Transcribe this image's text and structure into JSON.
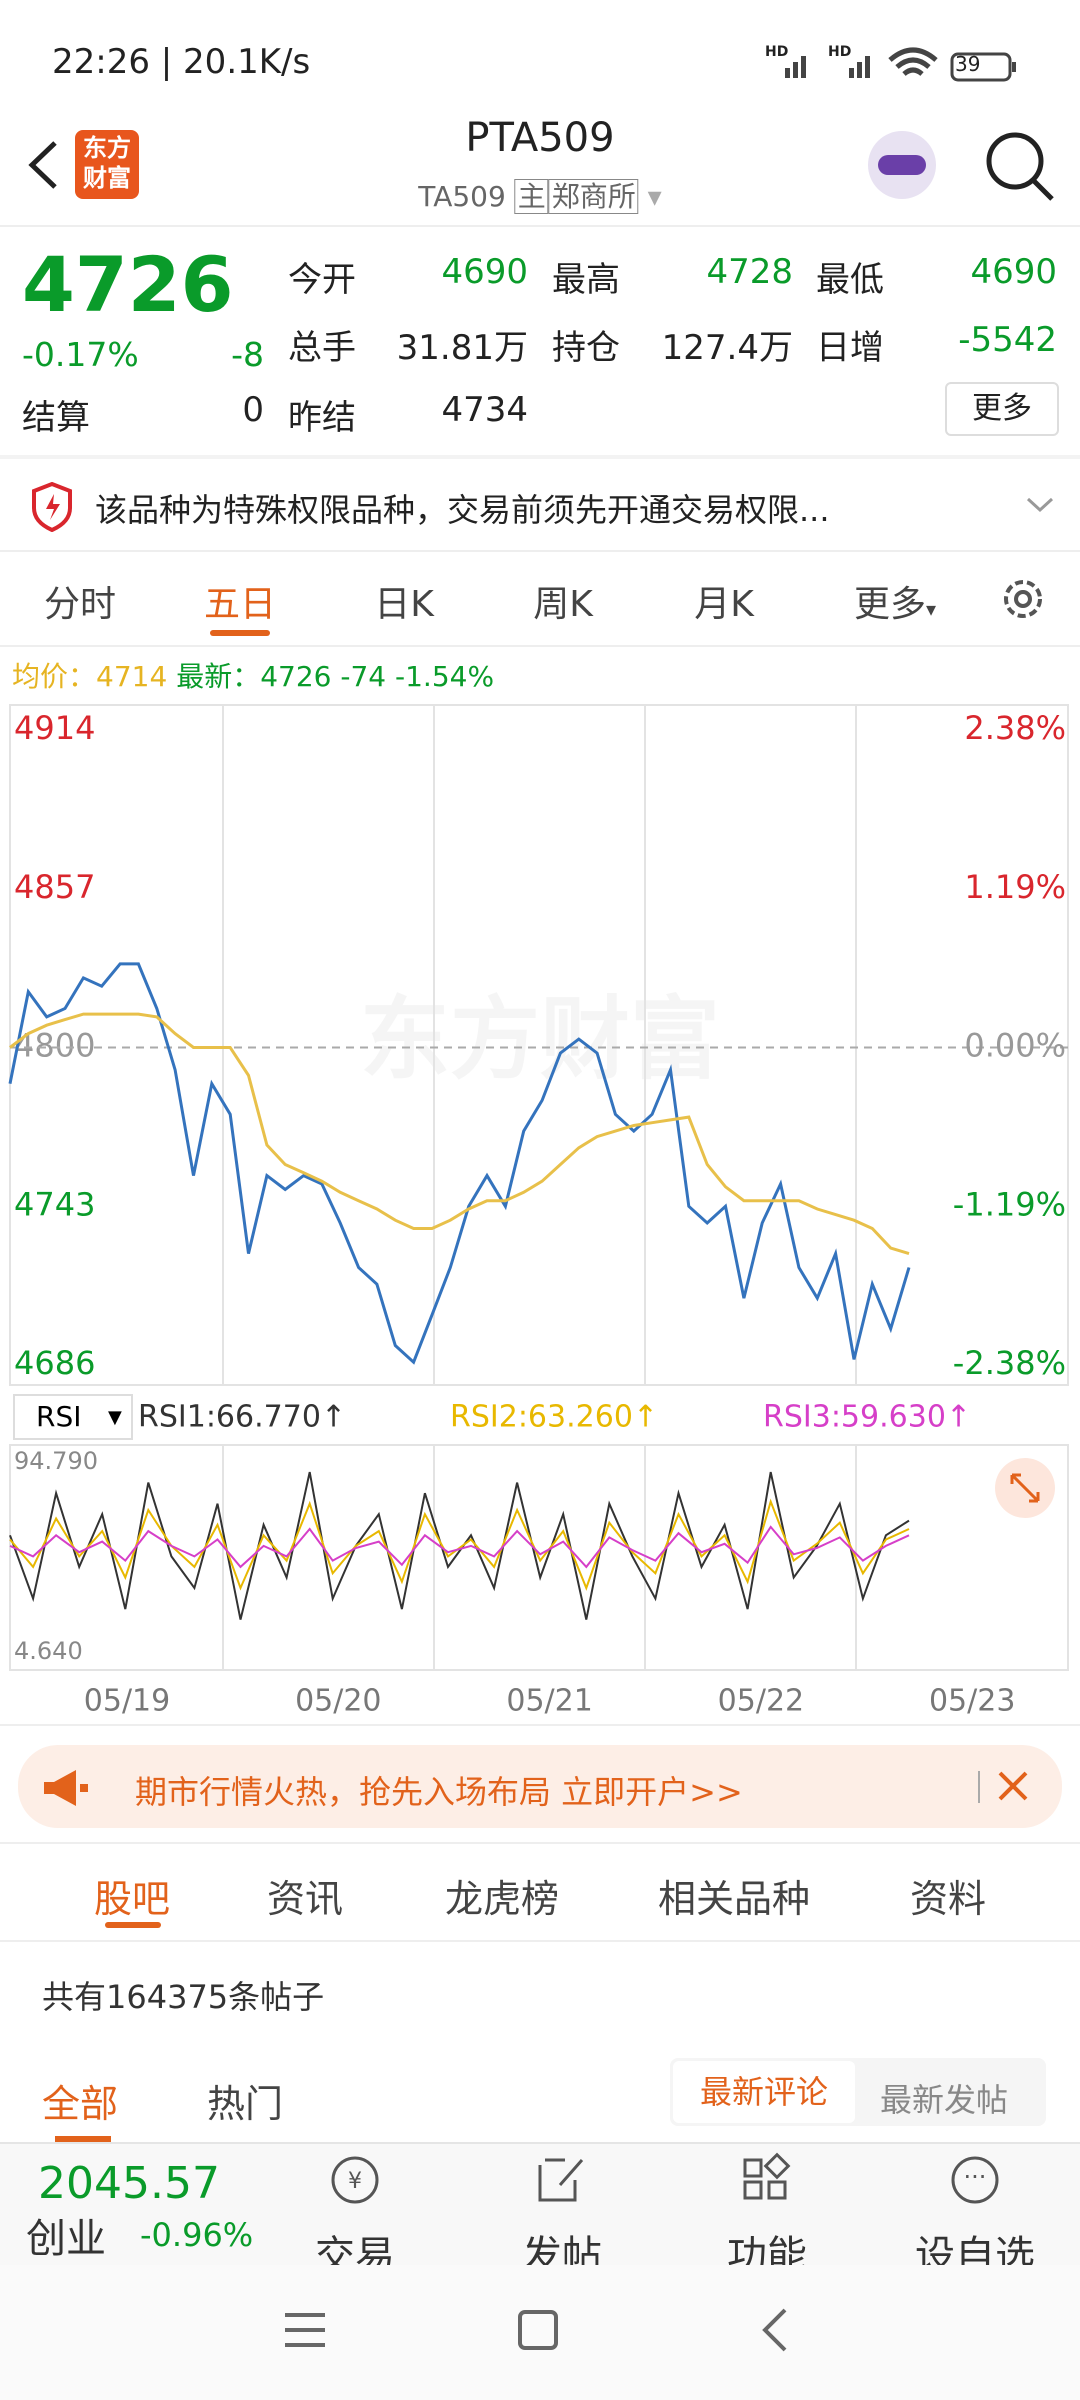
{
  "status": {
    "time": "22:26 | 20.1K/s",
    "hd": [
      "HD",
      "HD"
    ],
    "battery": "39"
  },
  "header": {
    "logo": [
      "东方",
      "财富"
    ],
    "title": "PTA509",
    "subtitle": "TA509",
    "tags": [
      "主",
      "郑商所"
    ]
  },
  "quote": {
    "price": "4726",
    "change_pct": "-0.17%",
    "change": "-8",
    "settle_label": "结算",
    "settle": "0",
    "fields": [
      {
        "label": "今开",
        "value": "4690"
      },
      {
        "label": "最高",
        "value": "4728"
      },
      {
        "label": "最低",
        "value": "4690"
      },
      {
        "label": "总手",
        "value": "31.81万"
      },
      {
        "label": "持仓",
        "value": "127.4万"
      },
      {
        "label": "日增",
        "value": "-5542"
      },
      {
        "label": "昨结",
        "value": "4734"
      }
    ],
    "more": "更多"
  },
  "notice": "该品种为特殊权限品种，交易前须先开通交易权限...",
  "tabs": [
    "分时",
    "五日",
    "日K",
    "周K",
    "月K",
    "更多"
  ],
  "info": {
    "avg_label": "均价：",
    "avg": "4714",
    "last_label": "最新：",
    "last": "4726",
    "change": "-74",
    "pct": "-1.54%"
  },
  "watermark": "东方财富",
  "chart_data": [
    {
      "type": "line",
      "ylim": [
        4686,
        4914
      ],
      "yticks": [
        4914,
        4857,
        4800,
        4743,
        4686
      ],
      "y2lim": [
        -2.38,
        2.38
      ],
      "y2ticks": [
        {
          "value": 2.38,
          "label": "2.38%"
        },
        {
          "value": 1.19,
          "label": "1.19%"
        },
        {
          "value": 0,
          "label": "0.00%"
        },
        {
          "value": -1.19,
          "label": "-1.19%"
        },
        {
          "value": -2.38,
          "label": "-2.38%"
        }
      ],
      "series": [
        {
          "color": "#3473bd",
          "values": [
            4787,
            4820,
            4811,
            4814,
            4825,
            4822,
            4830,
            4830,
            4814,
            4792,
            4754,
            4787,
            4776,
            4726,
            4754,
            4749,
            4754,
            4751,
            4737,
            4721,
            4715,
            4693,
            4687,
            4704,
            4721,
            4743,
            4754,
            4743,
            4770,
            4781,
            4798,
            4803,
            4798,
            4776,
            4770,
            4776,
            4792,
            4743,
            4737,
            4743,
            4710,
            4737,
            4751,
            4721,
            4710,
            4726,
            4688,
            4715,
            4699,
            4721
          ]
        },
        {
          "color": "#e8c04a",
          "values": [
            4800,
            4805,
            4808,
            4810,
            4812,
            4812,
            4812,
            4812,
            4811,
            4805,
            4800,
            4800,
            4800,
            4790,
            4765,
            4758,
            4755,
            4752,
            4748,
            4745,
            4742,
            4738,
            4735,
            4735,
            4738,
            4742,
            4745,
            4745,
            4748,
            4752,
            4758,
            4764,
            4768,
            4770,
            4772,
            4773,
            4774,
            4775,
            4758,
            4750,
            4745,
            4745,
            4745,
            4745,
            4742,
            4740,
            4738,
            4735,
            4728,
            4726
          ]
        }
      ]
    },
    {
      "type": "line",
      "ylim": [
        4.64,
        94.79
      ],
      "yticks": [
        {
          "value": 94.79,
          "label": "94.790"
        },
        {
          "value": 4.64,
          "label": "4.640"
        }
      ],
      "series": [
        {
          "name": "RSI1:66.770↑",
          "color": "#333333",
          "values": [
            60,
            30,
            80,
            45,
            70,
            25,
            85,
            50,
            35,
            75,
            20,
            65,
            40,
            90,
            30,
            55,
            70,
            25,
            80,
            45,
            60,
            35,
            85,
            40,
            70,
            20,
            75,
            50,
            30,
            80,
            45,
            65,
            25,
            90,
            40,
            55,
            75,
            30,
            60,
            67
          ]
        },
        {
          "name": "RSI2:63.260↑",
          "color": "#e8b800",
          "values": [
            58,
            45,
            68,
            50,
            62,
            40,
            72,
            55,
            45,
            65,
            35,
            60,
            48,
            75,
            42,
            55,
            62,
            38,
            70,
            50,
            58,
            45,
            72,
            48,
            62,
            35,
            66,
            52,
            42,
            70,
            50,
            60,
            38,
            76,
            48,
            56,
            66,
            42,
            58,
            63
          ]
        },
        {
          "name": "RSI3:59.630↑",
          "color": "#d63fc8",
          "values": [
            55,
            50,
            60,
            52,
            57,
            48,
            62,
            55,
            50,
            58,
            45,
            55,
            50,
            63,
            48,
            54,
            57,
            46,
            60,
            52,
            55,
            50,
            62,
            51,
            57,
            45,
            59,
            53,
            48,
            61,
            52,
            56,
            47,
            64,
            51,
            54,
            59,
            48,
            55,
            60
          ]
        }
      ]
    }
  ],
  "rsi_selector": "RSI",
  "dates": [
    "05/19",
    "05/20",
    "05/21",
    "05/22",
    "05/23"
  ],
  "ad": "期市行情火热，抢先入场布局 立即开户>>",
  "tabs2": [
    "股吧",
    "资讯",
    "龙虎榜",
    "相关品种",
    "资料"
  ],
  "post_count": "共有164375条帖子",
  "filters": [
    "全部",
    "热门"
  ],
  "sort": [
    "最新评论",
    "最新发帖"
  ],
  "bottom": {
    "index_value": "2045.57",
    "index_name": "创业",
    "index_change": "-0.96%",
    "items": [
      "交易",
      "发帖",
      "功能",
      "设自选"
    ]
  }
}
